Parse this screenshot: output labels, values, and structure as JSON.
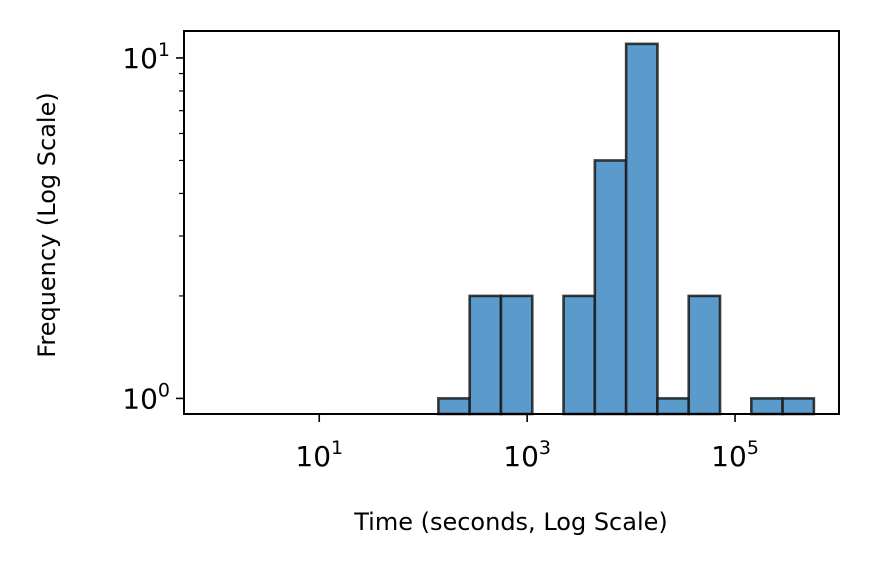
{
  "chart_data": {
    "type": "bar",
    "title": "",
    "xlabel": "Time (seconds, Log Scale)",
    "ylabel": "Frequency (Log Scale)",
    "xscale": "log",
    "yscale": "log",
    "xlim": [
      0.5,
      1000000
    ],
    "ylim": [
      0.9,
      12
    ],
    "grid": false,
    "bar_color": "#5b9bcb",
    "edge_color": "#1a1a1a",
    "x_ticks": [
      {
        "base": "10",
        "exp": "1",
        "value": 10
      },
      {
        "base": "10",
        "exp": "3",
        "value": 1000
      },
      {
        "base": "10",
        "exp": "5",
        "value": 100000
      }
    ],
    "y_ticks": [
      {
        "base": "10",
        "exp": "0",
        "value": 1
      },
      {
        "base": "10",
        "exp": "1",
        "value": 10
      }
    ],
    "bins": [
      {
        "x0": 140,
        "x1": 280,
        "count": 1
      },
      {
        "x0": 280,
        "x1": 560,
        "count": 2
      },
      {
        "x0": 560,
        "x1": 1120,
        "count": 2
      },
      {
        "x0": 2240,
        "x1": 4480,
        "count": 2
      },
      {
        "x0": 4480,
        "x1": 8960,
        "count": 5
      },
      {
        "x0": 8960,
        "x1": 17920,
        "count": 11
      },
      {
        "x0": 17920,
        "x1": 35840,
        "count": 1
      },
      {
        "x0": 35840,
        "x1": 71680,
        "count": 2
      },
      {
        "x0": 143360,
        "x1": 286720,
        "count": 1
      },
      {
        "x0": 286720,
        "x1": 573440,
        "count": 1
      }
    ]
  }
}
